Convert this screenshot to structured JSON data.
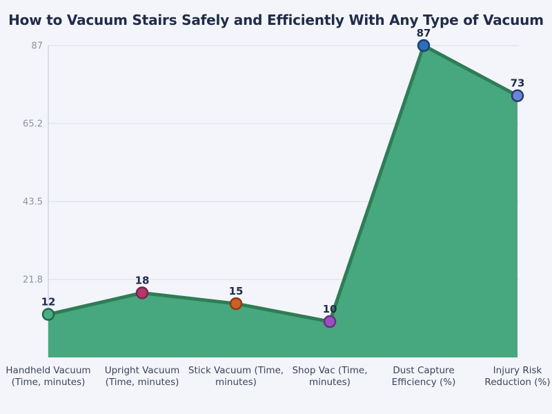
{
  "page": {
    "background": "#f3f5fa"
  },
  "chart_data": {
    "type": "area",
    "title": "How to Vacuum Stairs Safely and Efficiently With Any Type of Vacuum",
    "categories": [
      "Handheld Vacuum (Time, minutes)",
      "Upright Vacuum (Time, minutes)",
      "Stick Vacuum (Time, minutes)",
      "Shop Vac (Time, minutes)",
      "Dust Capture Efficiency (%)",
      "Injury Risk Reduction (%)"
    ],
    "category_label_lines": [
      [
        "Handheld Vacuum",
        "(Time, minutes)"
      ],
      [
        "Upright Vacuum",
        "(Time, minutes)"
      ],
      [
        "Stick Vacuum (Time,",
        "minutes)"
      ],
      [
        "Shop Vac (Time,",
        "minutes)"
      ],
      [
        "Dust Capture",
        "Efficiency (%)"
      ],
      [
        "Injury Risk",
        "Reduction (%)"
      ]
    ],
    "values": [
      12,
      18,
      15,
      10,
      87,
      73
    ],
    "value_labels": [
      "12",
      "18",
      "15",
      "10",
      "87",
      "73"
    ],
    "ylim": [
      0,
      87
    ],
    "y_ticks": [
      {
        "value": 21.75,
        "label": "21.8"
      },
      {
        "value": 43.5,
        "label": "43.5"
      },
      {
        "value": 65.25,
        "label": "65.2"
      },
      {
        "value": 87,
        "label": "87"
      }
    ],
    "grid": true,
    "legend": false,
    "xlabel": "",
    "ylabel": "",
    "colors": {
      "area_fill": "#47a77e",
      "line": "#2e7d55",
      "grid_line": "#dde2ec",
      "axis_line": "#c9cfda",
      "tick_label": "#8a92a5",
      "category_label": "#3d4357",
      "value_label": "#202c49",
      "title": "#202c49"
    },
    "point_colors": [
      {
        "fill": "#4caa85",
        "stroke": "#1d6a49"
      },
      {
        "fill": "#b03a6c",
        "stroke": "#7c2349"
      },
      {
        "fill": "#cd5f28",
        "stroke": "#8e3c12"
      },
      {
        "fill": "#9b50c0",
        "stroke": "#663084"
      },
      {
        "fill": "#2f6fba",
        "stroke": "#1c3f6e"
      },
      {
        "fill": "#6c86d6",
        "stroke": "#2d3b6e"
      }
    ]
  }
}
